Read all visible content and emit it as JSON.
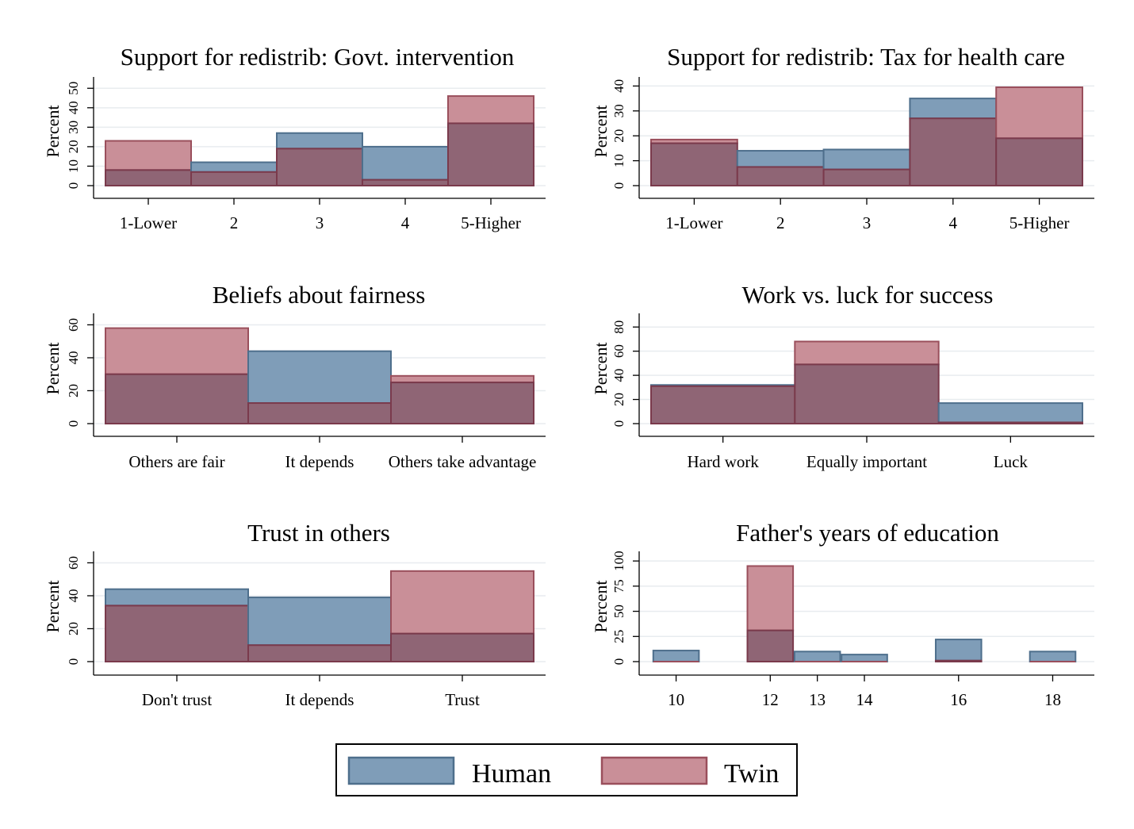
{
  "colors": {
    "human_fill": "#7f9db8",
    "human_stroke": "#4e6f8c",
    "twin_fill": "#c98f98",
    "twin_stroke": "#9a4f5c",
    "overlap_fill": "#8f6575",
    "overlap_stroke": "#7a3a4c"
  },
  "legend": {
    "human_label": "Human",
    "twin_label": "Twin",
    "placement": "bottom-center"
  },
  "chart_data": [
    {
      "type": "bar",
      "title": "Support for redistrib: Govt. intervention",
      "ylabel": "Percent",
      "ylim": [
        0,
        55
      ],
      "yticks": [
        0,
        10,
        20,
        30,
        40,
        50
      ],
      "ytick_rotated": true,
      "categories": [
        "1-Lower",
        "2",
        "3",
        "4",
        "5-Higher"
      ],
      "series": [
        {
          "name": "Human",
          "values": [
            8,
            12,
            27,
            20,
            32
          ]
        },
        {
          "name": "Twin",
          "values": [
            23,
            7,
            19,
            3,
            46
          ]
        }
      ],
      "grid": true
    },
    {
      "type": "bar",
      "title": "Support for redistrib: Tax for health care",
      "ylabel": "Percent",
      "ylim": [
        0,
        43
      ],
      "yticks": [
        0,
        10,
        20,
        30,
        40
      ],
      "ytick_rotated": true,
      "categories": [
        "1-Lower",
        "2",
        "3",
        "4",
        "5-Higher"
      ],
      "series": [
        {
          "name": "Human",
          "values": [
            17,
            14,
            14.5,
            35,
            19
          ]
        },
        {
          "name": "Twin",
          "values": [
            18.5,
            7.5,
            6.5,
            27,
            39.5
          ]
        }
      ],
      "grid": true
    },
    {
      "type": "bar",
      "title": "Beliefs about fairness",
      "ylabel": "Percent",
      "ylim": [
        0,
        66
      ],
      "yticks": [
        0,
        20,
        40,
        60
      ],
      "ytick_rotated": true,
      "categories": [
        "Others are fair",
        "It depends",
        "Others take advantage"
      ],
      "series": [
        {
          "name": "Human",
          "values": [
            30,
            44,
            25
          ]
        },
        {
          "name": "Twin",
          "values": [
            58,
            12.5,
            29
          ]
        }
      ],
      "grid": true
    },
    {
      "type": "bar",
      "title": "Work vs. luck for success",
      "ylabel": "Percent",
      "ylim": [
        0,
        90
      ],
      "yticks": [
        0,
        20,
        40,
        60,
        80
      ],
      "ytick_rotated": true,
      "categories": [
        "Hard work",
        "Equally important",
        "Luck"
      ],
      "series": [
        {
          "name": "Human",
          "values": [
            32,
            49,
            17
          ]
        },
        {
          "name": "Twin",
          "values": [
            31,
            68,
            1
          ]
        }
      ],
      "grid": true
    },
    {
      "type": "bar",
      "title": "Trust in others",
      "ylabel": "Percent",
      "ylim": [
        0,
        66
      ],
      "yticks": [
        0,
        20,
        40,
        60
      ],
      "ytick_rotated": true,
      "categories": [
        "Don't trust",
        "It depends",
        "Trust"
      ],
      "series": [
        {
          "name": "Human",
          "values": [
            44,
            39,
            17
          ]
        },
        {
          "name": "Twin",
          "values": [
            34,
            10,
            55
          ]
        }
      ],
      "grid": true
    },
    {
      "type": "bar",
      "title": "Father's years of education",
      "ylabel": "Percent",
      "ylim": [
        0,
        108
      ],
      "yticks": [
        0,
        25,
        50,
        75,
        100
      ],
      "ytick_rotated": true,
      "x_numeric": true,
      "xlim": [
        9.35,
        18.75
      ],
      "xticks": [
        10,
        12,
        13,
        14,
        16,
        18
      ],
      "bar_width": 1,
      "bars": [
        {
          "x": 10,
          "human": 11,
          "twin": 0
        },
        {
          "x": 12,
          "human": 31,
          "twin": 95
        },
        {
          "x": 13,
          "human": 10,
          "twin": 0
        },
        {
          "x": 14,
          "human": 7,
          "twin": 0
        },
        {
          "x": 16,
          "human": 22,
          "twin": 1
        },
        {
          "x": 18,
          "human": 10,
          "twin": 0
        }
      ],
      "grid": true
    }
  ]
}
